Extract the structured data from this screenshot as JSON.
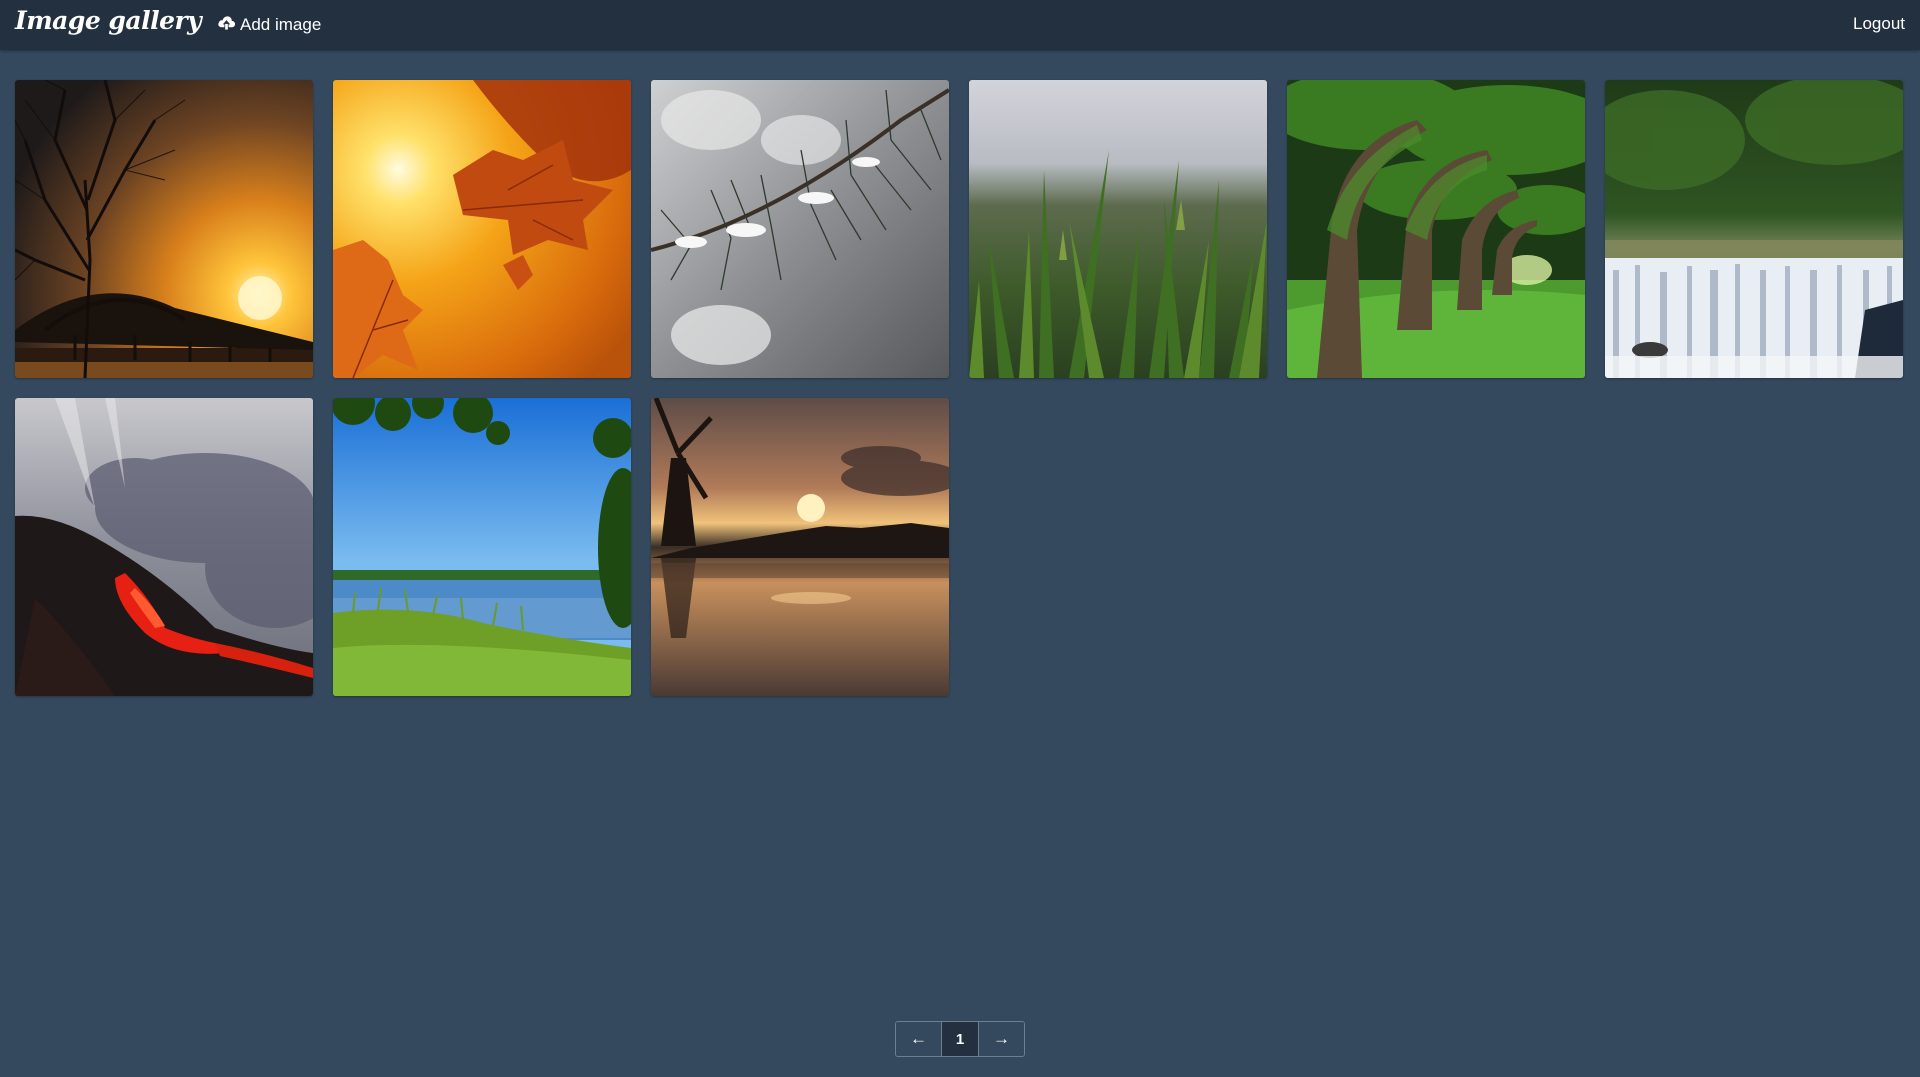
{
  "navbar": {
    "brand": "Image gallery",
    "add_image_label": "Add image",
    "logout_label": "Logout"
  },
  "gallery": {
    "images": [
      {
        "subject": "bridge-sunset"
      },
      {
        "subject": "autumn-leaves"
      },
      {
        "subject": "snowy-pine"
      },
      {
        "subject": "green-grass"
      },
      {
        "subject": "oak-alley"
      },
      {
        "subject": "waterfall"
      },
      {
        "subject": "lava-clouds"
      },
      {
        "subject": "lake-shore"
      },
      {
        "subject": "windmill-sunset"
      }
    ]
  },
  "pagination": {
    "prev_label": "←",
    "current_page": "1",
    "next_label": "→"
  },
  "colors": {
    "background": "#34495e",
    "navbar": "#22303f",
    "text": "#ffffff"
  }
}
